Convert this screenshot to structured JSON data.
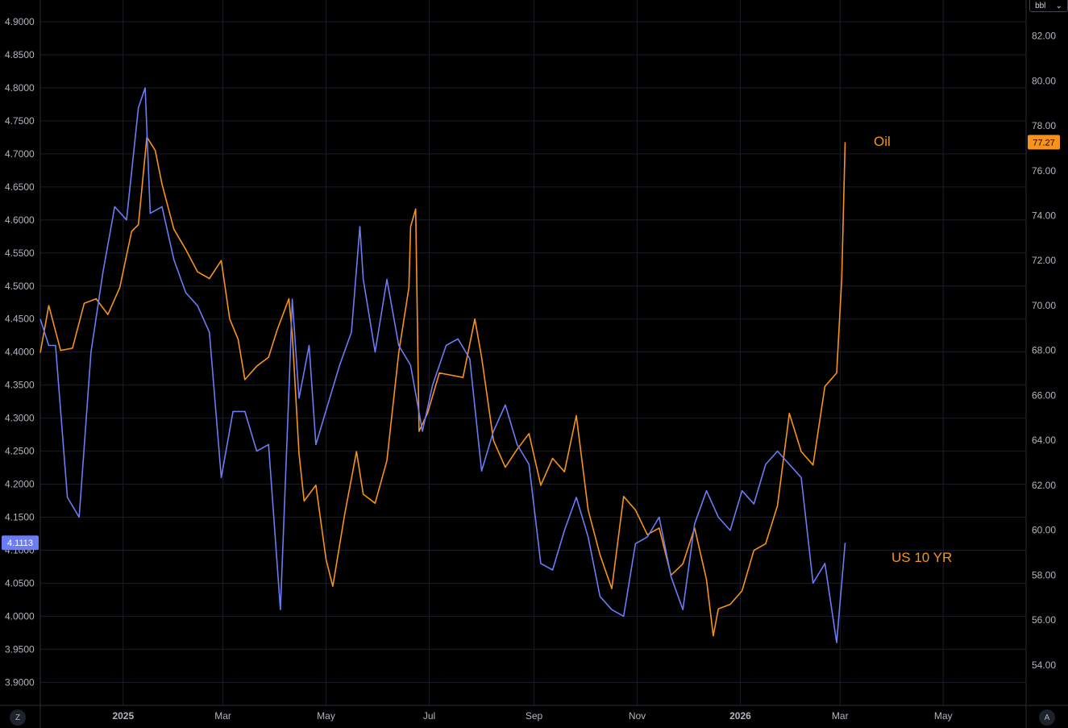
{
  "chart_data": {
    "type": "line",
    "title": "",
    "grid": true,
    "x_labels": [
      {
        "text": "2025",
        "date": "2025-01-01",
        "bold": true
      },
      {
        "text": "Mar",
        "date": "2025-03-01",
        "bold": false
      },
      {
        "text": "May",
        "date": "2025-05-01",
        "bold": false
      },
      {
        "text": "Jul",
        "date": "2025-07-01",
        "bold": false
      },
      {
        "text": "Sep",
        "date": "2025-09-01",
        "bold": false
      },
      {
        "text": "Nov",
        "date": "2025-11-01",
        "bold": false
      },
      {
        "text": "2026",
        "date": "2026-01-01",
        "bold": true
      },
      {
        "text": "Mar",
        "date": "2026-03-01",
        "bold": false
      },
      {
        "text": "May",
        "date": "2026-05-01",
        "bold": false
      }
    ],
    "xlim": [
      "2024-11-13",
      "2026-06-19"
    ],
    "left_axis": {
      "ylim": [
        3.865,
        4.933
      ],
      "ticks": [
        "3.9000",
        "3.9500",
        "4.0000",
        "4.0500",
        "4.1000",
        "4.1500",
        "4.2000",
        "4.2500",
        "4.3000",
        "4.3500",
        "4.4000",
        "4.4500",
        "4.5000",
        "4.5500",
        "4.6000",
        "4.6500",
        "4.7000",
        "4.7500",
        "4.8000",
        "4.8500",
        "4.9000"
      ],
      "last_value_label": "4.1113",
      "last_value_color": "#6b7cf5"
    },
    "right_axis": {
      "ylim": [
        52.2,
        83.6
      ],
      "ticks": [
        "54.00",
        "56.00",
        "58.00",
        "60.00",
        "62.00",
        "64.00",
        "66.00",
        "68.00",
        "70.00",
        "72.00",
        "74.00",
        "76.00",
        "78.00",
        "80.00",
        "82.00"
      ],
      "last_value_label": "77.27",
      "last_value_color": "#f7931a",
      "unit_label": "bbl"
    },
    "series": [
      {
        "name": "Oil",
        "axis": "right",
        "color": "#f7931a",
        "points": [
          [
            "2024-11-13",
            67.9
          ],
          [
            "2024-11-18",
            70.0
          ],
          [
            "2024-11-25",
            68.0
          ],
          [
            "2024-12-02",
            68.1
          ],
          [
            "2024-12-09",
            70.1
          ],
          [
            "2024-12-16",
            70.3
          ],
          [
            "2024-12-23",
            69.6
          ],
          [
            "2024-12-30",
            70.8
          ],
          [
            "2025-01-06",
            73.3
          ],
          [
            "2025-01-10",
            73.6
          ],
          [
            "2025-01-15",
            77.5
          ],
          [
            "2025-01-20",
            76.9
          ],
          [
            "2025-01-24",
            75.4
          ],
          [
            "2025-01-31",
            73.4
          ],
          [
            "2025-02-07",
            72.5
          ],
          [
            "2025-02-14",
            71.5
          ],
          [
            "2025-02-21",
            71.2
          ],
          [
            "2025-02-28",
            72.0
          ],
          [
            "2025-03-05",
            69.4
          ],
          [
            "2025-03-10",
            68.5
          ],
          [
            "2025-03-14",
            66.7
          ],
          [
            "2025-03-21",
            67.3
          ],
          [
            "2025-03-28",
            67.7
          ],
          [
            "2025-04-02",
            68.9
          ],
          [
            "2025-04-09",
            70.3
          ],
          [
            "2025-04-11",
            68.7
          ],
          [
            "2025-04-15",
            63.4
          ],
          [
            "2025-04-18",
            61.3
          ],
          [
            "2025-04-25",
            62.0
          ],
          [
            "2025-05-01",
            58.7
          ],
          [
            "2025-05-05",
            57.5
          ],
          [
            "2025-05-12",
            60.7
          ],
          [
            "2025-05-19",
            63.5
          ],
          [
            "2025-05-23",
            61.6
          ],
          [
            "2025-05-30",
            61.2
          ],
          [
            "2025-06-06",
            63.1
          ],
          [
            "2025-06-13",
            67.9
          ],
          [
            "2025-06-19",
            70.8
          ],
          [
            "2025-06-20",
            73.5
          ],
          [
            "2025-06-23",
            74.3
          ],
          [
            "2025-06-25",
            64.4
          ],
          [
            "2025-06-30",
            65.2
          ],
          [
            "2025-07-07",
            67.0
          ],
          [
            "2025-07-14",
            66.9
          ],
          [
            "2025-07-21",
            66.8
          ],
          [
            "2025-07-28",
            69.4
          ],
          [
            "2025-08-01",
            67.7
          ],
          [
            "2025-08-08",
            64.0
          ],
          [
            "2025-08-15",
            62.8
          ],
          [
            "2025-08-22",
            63.6
          ],
          [
            "2025-08-29",
            64.3
          ],
          [
            "2025-09-05",
            62.0
          ],
          [
            "2025-09-12",
            63.2
          ],
          [
            "2025-09-19",
            62.6
          ],
          [
            "2025-09-26",
            65.1
          ],
          [
            "2025-10-03",
            60.9
          ],
          [
            "2025-10-10",
            58.9
          ],
          [
            "2025-10-17",
            57.4
          ],
          [
            "2025-10-24",
            61.5
          ],
          [
            "2025-10-31",
            60.9
          ],
          [
            "2025-11-07",
            59.8
          ],
          [
            "2025-11-14",
            60.1
          ],
          [
            "2025-11-21",
            58.0
          ],
          [
            "2025-11-28",
            58.5
          ],
          [
            "2025-12-05",
            60.1
          ],
          [
            "2025-12-12",
            57.8
          ],
          [
            "2025-12-16",
            55.3
          ],
          [
            "2025-12-19",
            56.5
          ],
          [
            "2025-12-26",
            56.7
          ],
          [
            "2026-01-02",
            57.3
          ],
          [
            "2026-01-09",
            59.1
          ],
          [
            "2026-01-16",
            59.4
          ],
          [
            "2026-01-23",
            61.1
          ],
          [
            "2026-01-30",
            65.2
          ],
          [
            "2026-02-06",
            63.5
          ],
          [
            "2026-02-13",
            62.9
          ],
          [
            "2026-02-20",
            66.4
          ],
          [
            "2026-02-27",
            67.0
          ],
          [
            "2026-03-02",
            71.2
          ],
          [
            "2026-03-04",
            77.27
          ]
        ]
      },
      {
        "name": "US 10 YR",
        "axis": "left",
        "color": "#6b7cf5",
        "points": [
          [
            "2024-11-13",
            4.45
          ],
          [
            "2024-11-18",
            4.41
          ],
          [
            "2024-11-22",
            4.41
          ],
          [
            "2024-11-29",
            4.18
          ],
          [
            "2024-12-06",
            4.15
          ],
          [
            "2024-12-13",
            4.4
          ],
          [
            "2024-12-20",
            4.52
          ],
          [
            "2024-12-27",
            4.62
          ],
          [
            "2025-01-03",
            4.6
          ],
          [
            "2025-01-10",
            4.77
          ],
          [
            "2025-01-14",
            4.8
          ],
          [
            "2025-01-17",
            4.61
          ],
          [
            "2025-01-24",
            4.62
          ],
          [
            "2025-01-31",
            4.54
          ],
          [
            "2025-02-07",
            4.49
          ],
          [
            "2025-02-14",
            4.47
          ],
          [
            "2025-02-21",
            4.43
          ],
          [
            "2025-02-28",
            4.21
          ],
          [
            "2025-03-07",
            4.31
          ],
          [
            "2025-03-14",
            4.31
          ],
          [
            "2025-03-21",
            4.25
          ],
          [
            "2025-03-28",
            4.26
          ],
          [
            "2025-04-04",
            4.01
          ],
          [
            "2025-04-09",
            4.34
          ],
          [
            "2025-04-11",
            4.48
          ],
          [
            "2025-04-15",
            4.33
          ],
          [
            "2025-04-21",
            4.41
          ],
          [
            "2025-04-25",
            4.26
          ],
          [
            "2025-05-02",
            4.32
          ],
          [
            "2025-05-09",
            4.38
          ],
          [
            "2025-05-16",
            4.43
          ],
          [
            "2025-05-21",
            4.59
          ],
          [
            "2025-05-23",
            4.51
          ],
          [
            "2025-05-30",
            4.4
          ],
          [
            "2025-06-06",
            4.51
          ],
          [
            "2025-06-13",
            4.41
          ],
          [
            "2025-06-20",
            4.38
          ],
          [
            "2025-06-27",
            4.28
          ],
          [
            "2025-07-03",
            4.35
          ],
          [
            "2025-07-11",
            4.41
          ],
          [
            "2025-07-18",
            4.42
          ],
          [
            "2025-07-25",
            4.39
          ],
          [
            "2025-08-01",
            4.22
          ],
          [
            "2025-08-08",
            4.28
          ],
          [
            "2025-08-15",
            4.32
          ],
          [
            "2025-08-22",
            4.26
          ],
          [
            "2025-08-29",
            4.23
          ],
          [
            "2025-09-05",
            4.08
          ],
          [
            "2025-09-12",
            4.07
          ],
          [
            "2025-09-19",
            4.13
          ],
          [
            "2025-09-26",
            4.18
          ],
          [
            "2025-10-03",
            4.12
          ],
          [
            "2025-10-10",
            4.03
          ],
          [
            "2025-10-17",
            4.01
          ],
          [
            "2025-10-24",
            4.0
          ],
          [
            "2025-10-31",
            4.11
          ],
          [
            "2025-11-07",
            4.12
          ],
          [
            "2025-11-14",
            4.15
          ],
          [
            "2025-11-21",
            4.06
          ],
          [
            "2025-11-28",
            4.01
          ],
          [
            "2025-12-05",
            4.14
          ],
          [
            "2025-12-12",
            4.19
          ],
          [
            "2025-12-19",
            4.15
          ],
          [
            "2025-12-26",
            4.13
          ],
          [
            "2026-01-02",
            4.19
          ],
          [
            "2026-01-09",
            4.17
          ],
          [
            "2026-01-16",
            4.23
          ],
          [
            "2026-01-23",
            4.25
          ],
          [
            "2026-01-30",
            4.23
          ],
          [
            "2026-02-06",
            4.21
          ],
          [
            "2026-02-13",
            4.05
          ],
          [
            "2026-02-20",
            4.08
          ],
          [
            "2026-02-27",
            3.96
          ],
          [
            "2026-03-04",
            4.1113
          ]
        ]
      }
    ],
    "annotations": [
      {
        "text": "Oil",
        "color": "#f7931a"
      },
      {
        "text": "US 10 YR",
        "color": "#f7931a"
      }
    ]
  },
  "corners": {
    "left_button": "Z",
    "right_button": "A"
  }
}
